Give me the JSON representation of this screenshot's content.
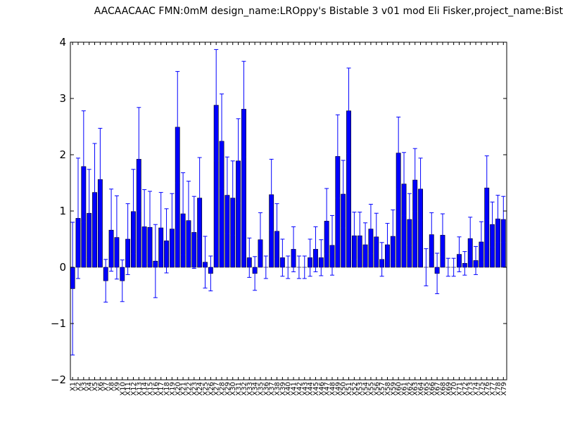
{
  "chart_data": {
    "type": "bar",
    "title": "AACAACAAC  FMN:0mM  design_name:LROppy's Bistable 3 v01 mod Eli Fisker,project_name:Bist",
    "xlabel": "",
    "ylabel": "",
    "ylim": [
      -2,
      4
    ],
    "yticks": [
      -2,
      -1,
      0,
      1,
      2,
      3,
      4
    ],
    "ytick_labels": [
      "−2",
      "−1",
      "0",
      "1",
      "2",
      "3",
      "4"
    ],
    "grid": false,
    "bar_color": "#0000ff",
    "error_color": "#0000ff",
    "categories": [
      "X1",
      "X2",
      "X3",
      "X4",
      "X5",
      "X6",
      "X7",
      "X8",
      "X9",
      "X10",
      "X11",
      "X12",
      "X13",
      "X14",
      "X15",
      "X16",
      "X17",
      "X18",
      "X19",
      "X20",
      "X21",
      "X22",
      "X23",
      "X24",
      "X25",
      "X26",
      "X27",
      "X28",
      "X29",
      "X30",
      "X31",
      "X32",
      "X33",
      "X34",
      "X35",
      "X36",
      "X37",
      "X38",
      "X39",
      "X40",
      "X41",
      "X42",
      "X43",
      "X44",
      "X45",
      "X46",
      "X47",
      "X48",
      "X49",
      "X50",
      "X51",
      "X52",
      "X53",
      "X54",
      "X55",
      "X56",
      "X57",
      "X58",
      "X59",
      "X60",
      "X61",
      "X62",
      "X63",
      "X64",
      "X65",
      "X66",
      "X67",
      "X68",
      "X69",
      "X70",
      "X71",
      "X72",
      "X73",
      "X74",
      "X75",
      "X76",
      "X77",
      "X78",
      "X79"
    ],
    "values": [
      -0.38,
      0.87,
      1.79,
      0.96,
      1.33,
      1.56,
      -0.24,
      0.66,
      0.53,
      -0.24,
      0.5,
      0.99,
      1.92,
      0.72,
      0.71,
      0.11,
      0.7,
      0.47,
      0.68,
      2.49,
      0.95,
      0.83,
      0.62,
      1.23,
      0.09,
      -0.11,
      2.88,
      2.24,
      1.28,
      1.23,
      1.89,
      2.81,
      0.17,
      -0.11,
      0.49,
      0.0,
      1.29,
      0.64,
      0.17,
      0.0,
      0.32,
      0.0,
      0.0,
      0.17,
      0.32,
      0.17,
      0.82,
      0.39,
      1.97,
      1.3,
      2.78,
      0.56,
      0.56,
      0.4,
      0.68,
      0.54,
      0.14,
      0.4,
      0.55,
      2.03,
      1.48,
      0.85,
      1.55,
      1.39,
      0.0,
      0.58,
      -0.11,
      0.57,
      0.0,
      0.0,
      0.23,
      0.07,
      0.51,
      0.12,
      0.45,
      1.41,
      0.76,
      0.86,
      0.85
    ],
    "errors": [
      1.18,
      1.07,
      0.99,
      0.78,
      0.87,
      0.91,
      0.38,
      0.73,
      0.74,
      0.37,
      0.63,
      0.75,
      0.92,
      0.66,
      0.64,
      0.65,
      0.63,
      0.57,
      0.63,
      0.99,
      0.73,
      0.7,
      0.64,
      0.72,
      0.46,
      0.31,
      0.99,
      0.84,
      0.68,
      0.66,
      0.75,
      0.85,
      0.35,
      0.3,
      0.48,
      0.2,
      0.63,
      0.49,
      0.33,
      0.2,
      0.4,
      0.2,
      0.2,
      0.33,
      0.4,
      0.32,
      0.58,
      0.53,
      0.74,
      0.6,
      0.76,
      0.42,
      0.42,
      0.39,
      0.44,
      0.42,
      0.3,
      0.38,
      0.47,
      0.64,
      0.56,
      0.46,
      0.56,
      0.55,
      0.33,
      0.39,
      0.36,
      0.38,
      0.16,
      0.16,
      0.31,
      0.21,
      0.38,
      0.25,
      0.36,
      0.57,
      0.4,
      0.42,
      0.41
    ]
  }
}
